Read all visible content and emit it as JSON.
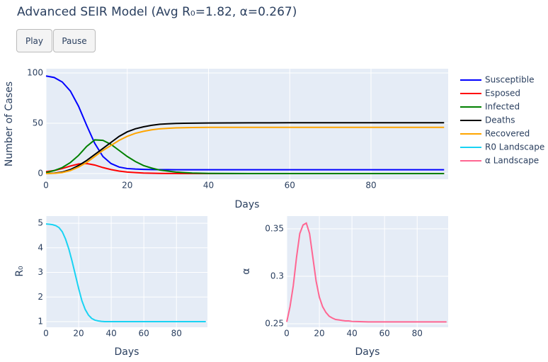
{
  "title": "Advanced SEIR Model (Avg R₀=1.82, α=0.267)",
  "buttons": [
    "Play",
    "Pause"
  ],
  "chart_data": [
    {
      "type": "line",
      "xlabel": "Days",
      "ylabel": "Number of Cases",
      "xlim": [
        0,
        99
      ],
      "ylim": [
        -5.6,
        104.2
      ],
      "xticks": [
        0,
        20,
        40,
        60,
        80
      ],
      "yticks": [
        0,
        50,
        100
      ],
      "grid": true,
      "x": [
        0,
        2,
        4,
        6,
        8,
        10,
        12,
        14,
        16,
        18,
        20,
        22,
        24,
        26,
        28,
        30,
        32,
        34,
        36,
        38,
        40,
        50,
        60,
        70,
        80,
        90,
        98
      ],
      "series": [
        {
          "name": "Susceptible",
          "color": "#0000ff",
          "values": [
            97,
            95.5,
            91,
            82,
            67,
            48,
            30,
            17,
            10,
            6.5,
            5,
            4.5,
            4.2,
            4,
            3.9,
            3.9,
            3.8,
            3.8,
            3.8,
            3.8,
            3.8,
            3.8,
            3.8,
            3.8,
            3.8,
            3.8,
            3.8
          ]
        },
        {
          "name": "Esposed",
          "color": "#ff0000",
          "values": [
            2,
            3,
            5,
            7.5,
            9.5,
            10,
            8.5,
            6,
            4,
            2.5,
            1.5,
            1,
            0.6,
            0.4,
            0.2,
            0.1,
            0.1,
            0,
            0,
            0,
            0,
            0,
            0,
            0,
            0,
            0,
            0
          ]
        },
        {
          "name": "Infected",
          "color": "#008000",
          "values": [
            1,
            3,
            6,
            11,
            18,
            27,
            33.5,
            33,
            29,
            23,
            17,
            12,
            8,
            5.5,
            3.5,
            2.5,
            1.5,
            1,
            0.6,
            0.4,
            0.2,
            0,
            0,
            0,
            0,
            0,
            0
          ]
        },
        {
          "name": "Deaths",
          "color": "#000000",
          "values": [
            0,
            0.5,
            1.5,
            4,
            8,
            13,
            19,
            25,
            31,
            37,
            41.5,
            44.5,
            46.5,
            48,
            49,
            49.5,
            49.8,
            50,
            50.1,
            50.2,
            50.3,
            50.4,
            50.5,
            50.5,
            50.5,
            50.5,
            50.5
          ]
        },
        {
          "name": "Recovered",
          "color": "#ffa500",
          "values": [
            0,
            0.3,
            1,
            3,
            6.5,
            11,
            17,
            23,
            28,
            33,
            37,
            40,
            42,
            43.5,
            44.5,
            45,
            45.4,
            45.6,
            45.8,
            45.9,
            46,
            46,
            46,
            46,
            46,
            46,
            46
          ]
        }
      ]
    },
    {
      "type": "line",
      "xlabel": "Days",
      "ylabel": "R₀",
      "xlim": [
        0,
        99
      ],
      "ylim": [
        0.77,
        5.29
      ],
      "xticks": [
        0,
        20,
        40,
        60,
        80
      ],
      "yticks": [
        1,
        2,
        3,
        4,
        5
      ],
      "grid": true,
      "x": [
        0,
        2,
        4,
        6,
        8,
        10,
        12,
        14,
        16,
        18,
        20,
        22,
        24,
        26,
        28,
        30,
        32,
        34,
        36,
        38,
        40,
        50,
        60,
        70,
        80,
        90,
        98
      ],
      "series": [
        {
          "name": "R0 Landscape",
          "color": "#19d3f3",
          "values": [
            4.97,
            4.96,
            4.94,
            4.9,
            4.82,
            4.65,
            4.35,
            3.95,
            3.45,
            2.9,
            2.35,
            1.85,
            1.5,
            1.27,
            1.13,
            1.06,
            1.03,
            1.01,
            1,
            1,
            1,
            1,
            1,
            1,
            1,
            1,
            1
          ]
        }
      ]
    },
    {
      "type": "line",
      "xlabel": "Days",
      "ylabel": "α",
      "xlim": [
        0,
        99
      ],
      "ylim": [
        0.2463,
        0.3634
      ],
      "xticks": [
        0,
        20,
        40,
        60,
        80
      ],
      "yticks": [
        0.25,
        0.3,
        0.35
      ],
      "grid": true,
      "x": [
        0,
        2,
        4,
        6,
        8,
        10,
        12,
        14,
        16,
        18,
        20,
        22,
        24,
        26,
        28,
        30,
        32,
        34,
        36,
        38,
        40,
        50,
        60,
        70,
        80,
        90,
        98
      ],
      "series": [
        {
          "name": "α Landscape",
          "color": "#ff6692",
          "values": [
            0.252,
            0.268,
            0.29,
            0.32,
            0.345,
            0.354,
            0.356,
            0.345,
            0.32,
            0.295,
            0.278,
            0.268,
            0.262,
            0.258,
            0.256,
            0.2545,
            0.254,
            0.2535,
            0.253,
            0.253,
            0.2525,
            0.252,
            0.252,
            0.252,
            0.252,
            0.252,
            0.252
          ]
        }
      ]
    }
  ]
}
